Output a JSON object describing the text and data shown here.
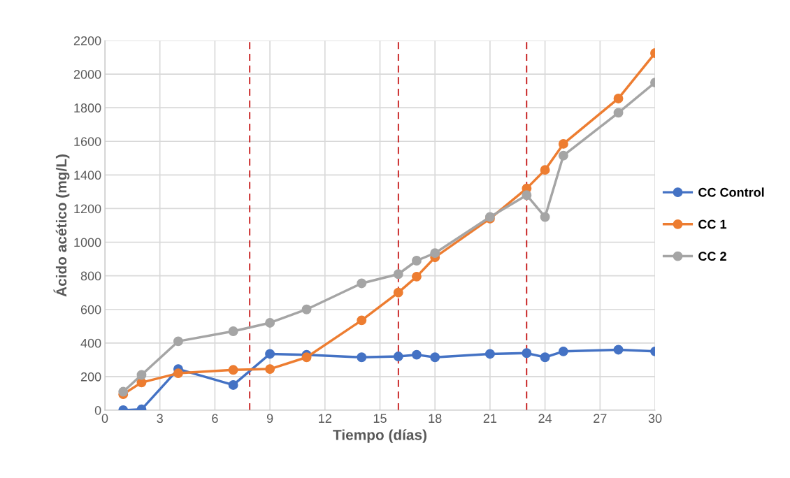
{
  "chart_data": {
    "type": "line",
    "xlabel": "Tiempo (días)",
    "ylabel": "Ácido acético (mg/L)",
    "x": [
      1,
      2,
      4,
      7,
      9,
      11,
      14,
      16,
      17,
      18,
      21,
      23,
      24,
      25,
      28,
      30
    ],
    "series": [
      {
        "name": "CC Control",
        "color": "#4472c4",
        "values": [
          0,
          5,
          245,
          150,
          335,
          330,
          315,
          320,
          330,
          315,
          335,
          340,
          315,
          350,
          360,
          350
        ]
      },
      {
        "name": "CC 1",
        "color": "#ed7d31",
        "values": [
          95,
          165,
          220,
          240,
          245,
          315,
          535,
          700,
          795,
          910,
          1140,
          1320,
          1430,
          1585,
          1855,
          2125
        ]
      },
      {
        "name": "CC 2",
        "color": "#a5a5a5",
        "values": [
          110,
          210,
          410,
          470,
          520,
          600,
          755,
          810,
          890,
          935,
          1150,
          1280,
          1150,
          1515,
          1770,
          1950
        ]
      }
    ],
    "xlim": [
      0,
      30
    ],
    "xticks": [
      0,
      3,
      6,
      9,
      12,
      15,
      18,
      21,
      24,
      27,
      30
    ],
    "ylim": [
      0,
      2200
    ],
    "yticks": [
      0,
      200,
      400,
      600,
      800,
      1000,
      1200,
      1400,
      1600,
      1800,
      2000,
      2200
    ],
    "ref_lines": [
      {
        "axis": "x",
        "value": 7.9,
        "color": "#c00000",
        "line_style": "dashed"
      },
      {
        "axis": "x",
        "value": 16,
        "color": "#c00000",
        "line_style": "dashed"
      },
      {
        "axis": "x",
        "value": 23,
        "color": "#c00000",
        "line_style": "dashed"
      }
    ],
    "grid": true,
    "legend": "right",
    "marker": "circle",
    "line_style": "solid"
  }
}
